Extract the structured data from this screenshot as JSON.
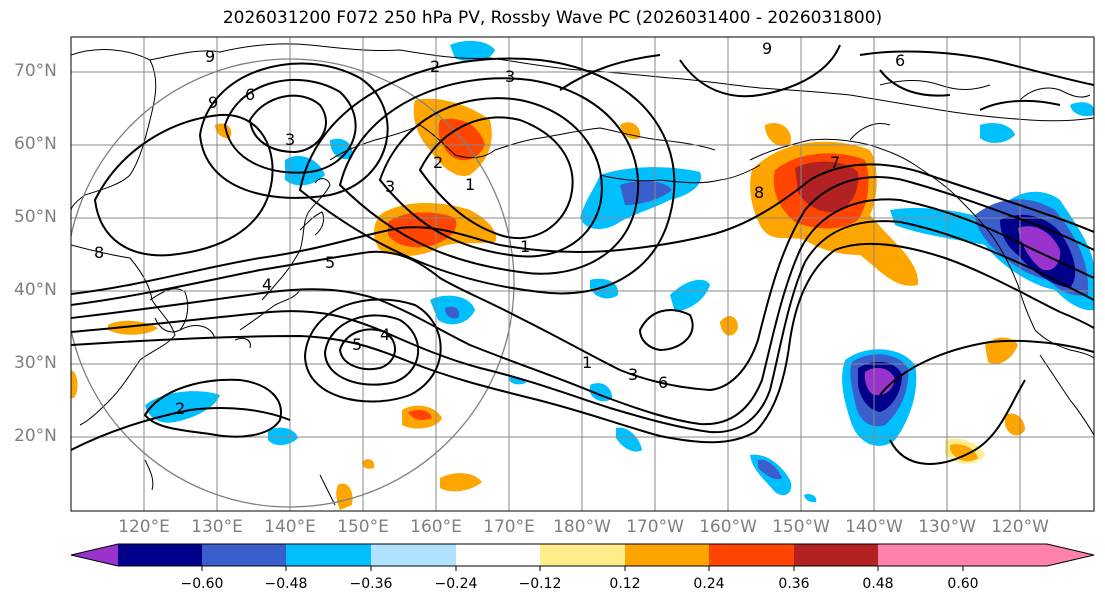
{
  "title": "2026031200 F072 250 hPa PV, Rossby Wave PC (2026031400 - 2026031800)",
  "lat_labels": [
    "70°N",
    "60°N",
    "50°N",
    "40°N",
    "30°N",
    "20°N"
  ],
  "lon_labels": [
    "120°E",
    "130°E",
    "140°E",
    "150°E",
    "160°E",
    "170°E",
    "180°W",
    "170°W",
    "160°W",
    "150°W",
    "140°W",
    "130°W",
    "120°W"
  ],
  "contour_labels": [
    "9",
    "9",
    "6",
    "2",
    "3",
    "9",
    "6",
    "3",
    "1",
    "3",
    "2",
    "4",
    "5",
    "5",
    "4",
    "1",
    "3",
    "6",
    "8",
    "7",
    "2",
    "8",
    "1"
  ],
  "colorbar": {
    "ticks": [
      "−0.60",
      "−0.48",
      "−0.36",
      "−0.24",
      "−0.12",
      "0.12",
      "0.24",
      "0.36",
      "0.48",
      "0.60"
    ],
    "colors": [
      "#9a32cd",
      "#00008b",
      "#3a5fcd",
      "#00bfff",
      "#b0e2ff",
      "#ffffff",
      "#ffec8b",
      "#ffa500",
      "#ff4500",
      "#b22222",
      "#ff82ab"
    ]
  }
}
